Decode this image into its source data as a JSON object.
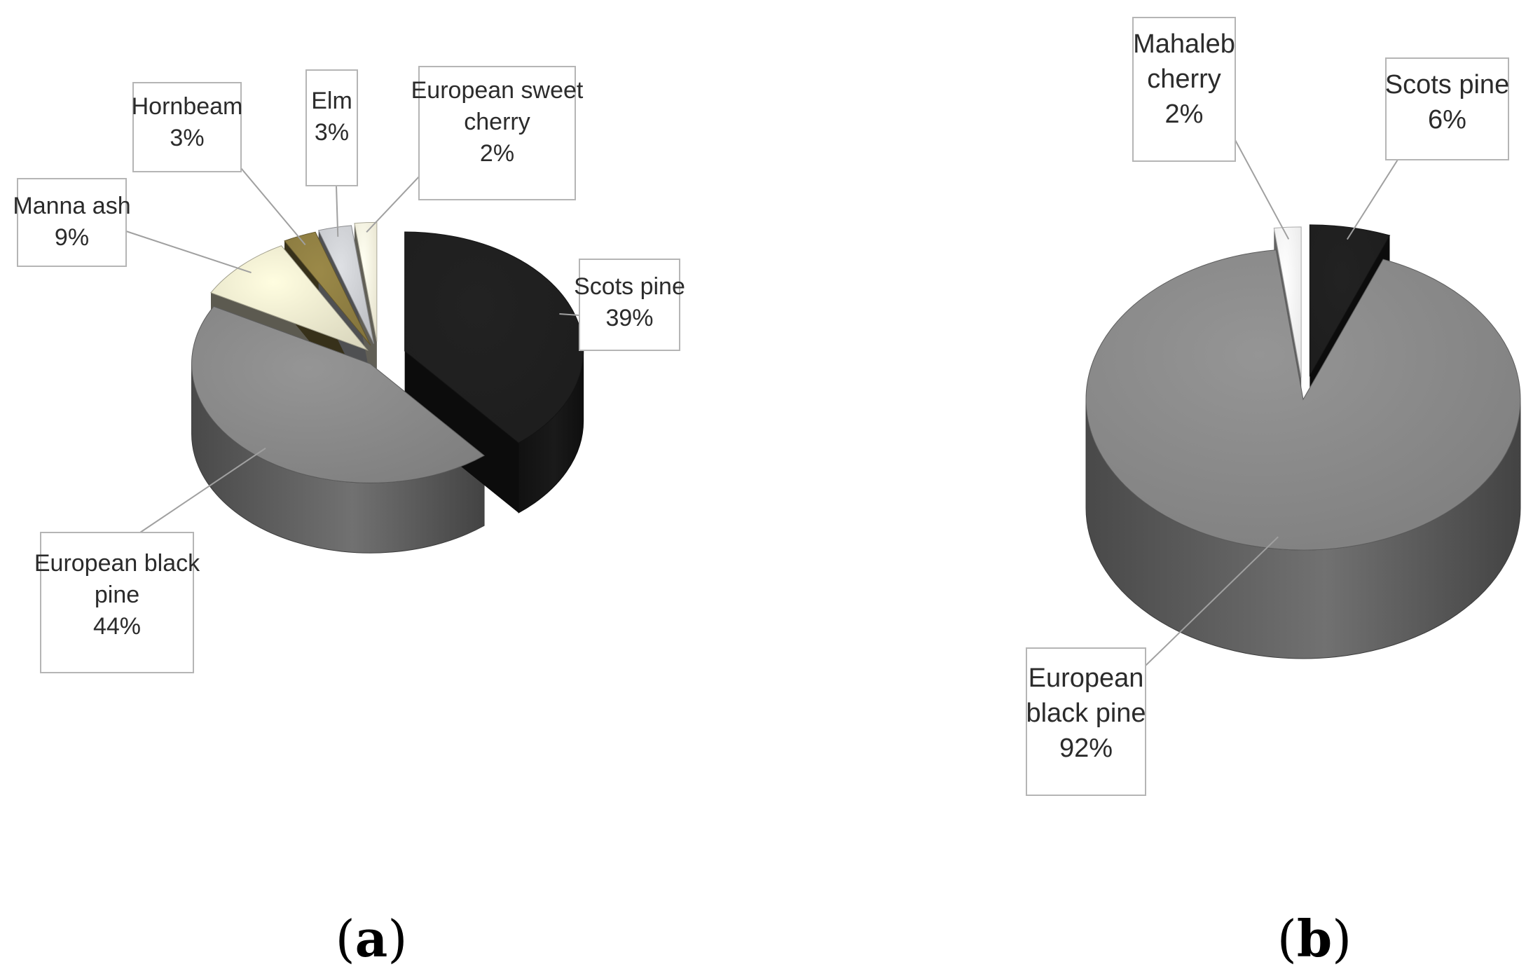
{
  "chart_data": [
    {
      "type": "pie",
      "panel_label": "a",
      "slices": [
        {
          "label": "Scots pine",
          "value": 39,
          "value_text": "39%",
          "color": "#1e1e1e"
        },
        {
          "label": "European black pine",
          "value": 44,
          "value_text": "44%",
          "color": "#858585"
        },
        {
          "label": "Manna ash",
          "value": 9,
          "value_text": "9%",
          "color": "#e5e2c8"
        },
        {
          "label": "Hornbeam",
          "value": 3,
          "value_text": "3%",
          "color": "#8a7a40"
        },
        {
          "label": "Elm",
          "value": 3,
          "value_text": "3%",
          "color": "#c6c8cc"
        },
        {
          "label": "European sweet cherry",
          "value": 2,
          "value_text": "2%",
          "color": "#f2eed8"
        }
      ]
    },
    {
      "type": "pie",
      "panel_label": "b",
      "slices": [
        {
          "label": "Scots pine",
          "value": 6,
          "value_text": "6%",
          "color": "#1e1e1e"
        },
        {
          "label": "European black pine",
          "value": 92,
          "value_text": "92%",
          "color": "#858585"
        },
        {
          "label": "Mahaleb cherry",
          "value": 2,
          "value_text": "2%",
          "color": "#f4f4f4"
        }
      ]
    }
  ]
}
